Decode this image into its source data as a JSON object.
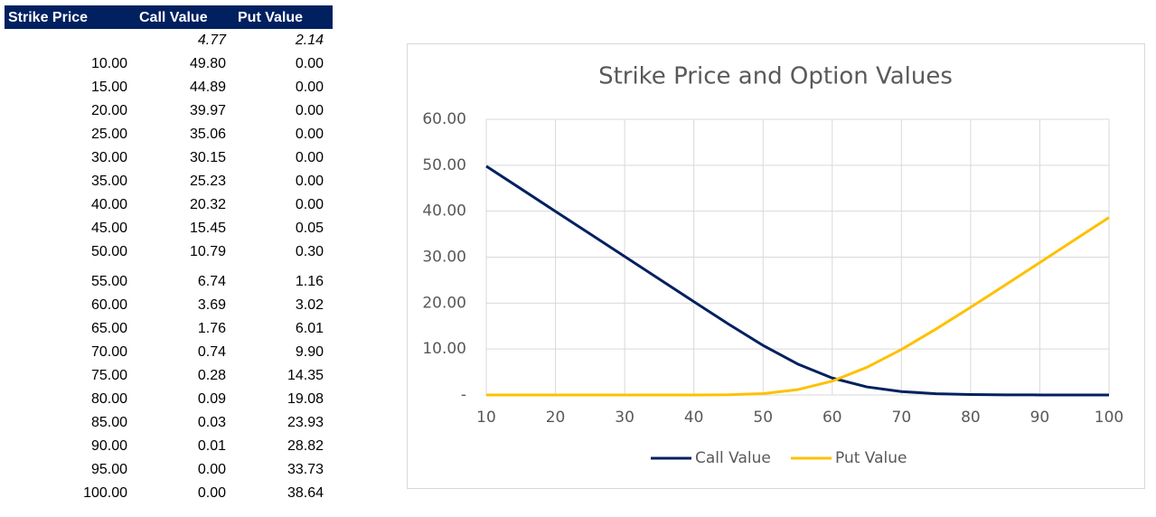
{
  "table": {
    "header": [
      "Strike Price",
      "Call Value",
      "Put Value"
    ],
    "rows": [
      [
        null,
        "4.77",
        "2.14"
      ],
      [
        "10.00",
        "49.80",
        "0.00"
      ],
      [
        "15.00",
        "44.89",
        "0.00"
      ],
      [
        "20.00",
        "39.97",
        "0.00"
      ],
      [
        "25.00",
        "35.06",
        "0.00"
      ],
      [
        "30.00",
        "30.15",
        "0.00"
      ],
      [
        "35.00",
        "25.23",
        "0.00"
      ],
      [
        "40.00",
        "20.32",
        "0.00"
      ],
      [
        "45.00",
        "15.45",
        "0.05"
      ],
      [
        "50.00",
        "10.79",
        "0.30"
      ],
      [
        "55.00",
        "6.74",
        "1.16"
      ],
      [
        "60.00",
        "3.69",
        "3.02"
      ],
      [
        "65.00",
        "1.76",
        "6.01"
      ],
      [
        "70.00",
        "0.74",
        "9.90"
      ],
      [
        "75.00",
        "0.28",
        "14.35"
      ],
      [
        "80.00",
        "0.09",
        "19.08"
      ],
      [
        "85.00",
        "0.03",
        "23.93"
      ],
      [
        "90.00",
        "0.01",
        "28.82"
      ],
      [
        "95.00",
        "0.00",
        "33.73"
      ],
      [
        "100.00",
        "0.00",
        "38.64"
      ]
    ]
  },
  "chart_data": {
    "type": "line",
    "title": "Strike Price and Option Values",
    "x": [
      10,
      15,
      20,
      25,
      30,
      35,
      40,
      45,
      50,
      55,
      60,
      65,
      70,
      75,
      80,
      85,
      90,
      95,
      100
    ],
    "series": [
      {
        "name": "Call Value",
        "color": "#002060",
        "values": [
          49.8,
          44.89,
          39.97,
          35.06,
          30.15,
          25.23,
          20.32,
          15.45,
          10.79,
          6.74,
          3.69,
          1.76,
          0.74,
          0.28,
          0.09,
          0.03,
          0.01,
          0.0,
          0.0
        ]
      },
      {
        "name": "Put Value",
        "color": "#FFC000",
        "values": [
          0.0,
          0.0,
          0.0,
          0.0,
          0.0,
          0.0,
          0.0,
          0.05,
          0.3,
          1.16,
          3.02,
          6.01,
          9.9,
          14.35,
          19.08,
          23.93,
          28.82,
          33.73,
          38.64
        ]
      }
    ],
    "xlim": [
      10,
      100
    ],
    "xticks": [
      10,
      20,
      30,
      40,
      50,
      60,
      70,
      80,
      90,
      100
    ],
    "ylim": [
      0,
      60
    ],
    "yticks": [
      {
        "value": 0,
        "label": "-"
      },
      {
        "value": 10,
        "label": "10.00"
      },
      {
        "value": 20,
        "label": "20.00"
      },
      {
        "value": 30,
        "label": "30.00"
      },
      {
        "value": 40,
        "label": "40.00"
      },
      {
        "value": 50,
        "label": "50.00"
      },
      {
        "value": 60,
        "label": "60.00"
      }
    ],
    "grid": true,
    "legend": "bottom"
  }
}
